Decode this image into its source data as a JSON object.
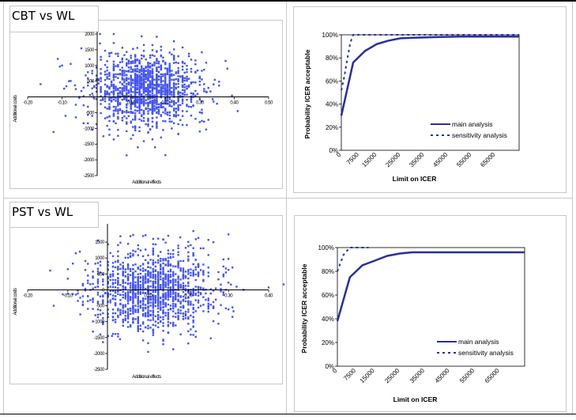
{
  "colors": {
    "scatter_point": "#4455ee",
    "ceac_line": "#27309a",
    "frame": "#c8c8c8"
  },
  "chart_data": [
    {
      "id": "cbt-scatter",
      "type": "scatter",
      "title": "CBT vs WL",
      "xlabel": "Additional effects",
      "ylabel": "Additional costs",
      "xlim": [
        -0.2,
        0.5
      ],
      "ylim": [
        -2500,
        2000
      ],
      "x_ticks": [
        "-0.20",
        "-0.10",
        "0.10",
        "0.20",
        "0.30",
        "0.40",
        "0.50"
      ],
      "x_tick_values": [
        -0.2,
        -0.1,
        0.1,
        0.2,
        0.3,
        0.4,
        0.5
      ],
      "y_ticks": [
        "2000",
        "1500",
        "1000",
        "500",
        "0",
        "-500",
        "-1000",
        "-1500",
        "-2000",
        "-2500"
      ],
      "y_tick_values": [
        2000,
        1500,
        1000,
        500,
        0,
        -500,
        -1000,
        -1500,
        -2000,
        -2500
      ],
      "cloud": {
        "x_center": 0.14,
        "x_sd": 0.075,
        "y_center": 250,
        "y_sd": 560,
        "n": 1400
      },
      "outliers": [
        [
          -0.1,
          1000
        ],
        [
          -0.08,
          500
        ],
        [
          -0.075,
          1050
        ],
        [
          -0.09,
          -600
        ],
        [
          -0.06,
          -650
        ],
        [
          -0.06,
          250
        ],
        [
          -0.06,
          -250
        ],
        [
          -0.05,
          0
        ],
        [
          0.01,
          2000
        ],
        [
          0.05,
          2000
        ],
        [
          0.38,
          900
        ],
        [
          0.41,
          -450
        ],
        [
          0.34,
          400
        ],
        [
          0.34,
          -150
        ],
        [
          0.2,
          -1850
        ],
        [
          0.12,
          -1600
        ],
        [
          0.17,
          -1600
        ],
        [
          0.02,
          -1250
        ],
        [
          0.05,
          -1350
        ],
        [
          0.3,
          -1100
        ],
        [
          0.3,
          -800
        ],
        [
          0.32,
          150
        ],
        [
          0.01,
          1700
        ],
        [
          -0.02,
          1200
        ]
      ]
    },
    {
      "id": "cbt-ceac",
      "type": "line",
      "xlabel": "Limit on ICER",
      "ylabel": "Probability ICER acceptable",
      "xlim": [
        0,
        75000
      ],
      "ylim": [
        0,
        1
      ],
      "x_ticks": [
        "0",
        "7500",
        "15000",
        "25000",
        "35000",
        "45000",
        "55000",
        "65000"
      ],
      "x_tick_values": [
        0,
        7500,
        15000,
        25000,
        35000,
        45000,
        55000,
        65000
      ],
      "y_ticks": [
        "0%",
        "20%",
        "40%",
        "60%",
        "80%",
        "100%"
      ],
      "y_tick_values": [
        0,
        0.2,
        0.4,
        0.6,
        0.8,
        1.0
      ],
      "legend_position": "bottom-right",
      "series": [
        {
          "name": "main analysis",
          "style": "solid",
          "x": [
            0,
            5000,
            10000,
            15000,
            20000,
            25000,
            30000,
            40000,
            50000,
            60000,
            75000
          ],
          "y": [
            0.3,
            0.76,
            0.86,
            0.92,
            0.95,
            0.97,
            0.975,
            0.98,
            0.985,
            0.985,
            0.985
          ]
        },
        {
          "name": "sensitivity analysis",
          "style": "dashed",
          "x": [
            0,
            1250,
            2500,
            3750,
            5000,
            75000
          ],
          "y": [
            0.52,
            0.64,
            0.79,
            0.93,
            1.0,
            1.0
          ]
        }
      ]
    },
    {
      "id": "pst-scatter",
      "type": "scatter",
      "title": "PST vs WL",
      "xlabel": "Additional effects",
      "ylabel": "Additional costs",
      "xlim": [
        -0.2,
        0.4
      ],
      "ylim": [
        -2500,
        2000
      ],
      "x_ticks": [
        "-0.20",
        "-0.10",
        "0.10",
        "0.20",
        "0.30",
        "0.40"
      ],
      "x_tick_values": [
        -0.2,
        -0.1,
        0.1,
        0.2,
        0.3,
        0.4
      ],
      "y_ticks": [
        "1500",
        "1000",
        "500",
        "0",
        "-500",
        "-1000",
        "-1500",
        "-2000",
        "-2500"
      ],
      "y_tick_values": [
        1500,
        1000,
        500,
        0,
        -500,
        -1000,
        -1500,
        -2000,
        -2500
      ],
      "cloud": {
        "x_center": 0.11,
        "x_sd": 0.075,
        "y_center": 0,
        "y_sd": 620,
        "n": 1400
      },
      "outliers": [
        [
          -0.135,
          -500
        ],
        [
          -0.1,
          650
        ],
        [
          -0.1,
          350
        ],
        [
          -0.08,
          1150
        ],
        [
          -0.07,
          1200
        ],
        [
          -0.08,
          -150
        ],
        [
          0.1,
          -1950
        ],
        [
          0.15,
          1700
        ],
        [
          0.18,
          1650
        ],
        [
          0.31,
          700
        ],
        [
          0.32,
          100
        ],
        [
          0.31,
          -850
        ],
        [
          0.31,
          -550
        ],
        [
          0.0,
          -1450
        ],
        [
          0.03,
          -1550
        ],
        [
          0.01,
          -1450
        ]
      ]
    },
    {
      "id": "pst-ceac",
      "type": "line",
      "xlabel": "Limit on ICER",
      "ylabel": "Probability ICER acceptable",
      "xlim": [
        0,
        75000
      ],
      "ylim": [
        0,
        1
      ],
      "x_ticks": [
        "0",
        "7500",
        "15000",
        "25000",
        "35000",
        "45000",
        "55000",
        "65000"
      ],
      "x_tick_values": [
        0,
        7500,
        15000,
        25000,
        35000,
        45000,
        55000,
        65000
      ],
      "y_ticks": [
        "0%",
        "20%",
        "40%",
        "60%",
        "80%",
        "100%"
      ],
      "y_tick_values": [
        0,
        0.2,
        0.4,
        0.6,
        0.8,
        1.0
      ],
      "legend_position": "bottom-right",
      "series": [
        {
          "name": "main analysis",
          "style": "solid",
          "x": [
            0,
            5000,
            10000,
            15000,
            20000,
            25000,
            30000,
            40000,
            50000,
            60000,
            75000
          ],
          "y": [
            0.38,
            0.75,
            0.85,
            0.89,
            0.93,
            0.95,
            0.96,
            0.96,
            0.96,
            0.96,
            0.96
          ]
        },
        {
          "name": "sensitivity analysis",
          "style": "dashed",
          "x": [
            0,
            1250,
            2500,
            5000,
            12500
          ],
          "y": [
            0.8,
            0.87,
            0.94,
            1.0,
            1.0
          ]
        }
      ]
    }
  ]
}
